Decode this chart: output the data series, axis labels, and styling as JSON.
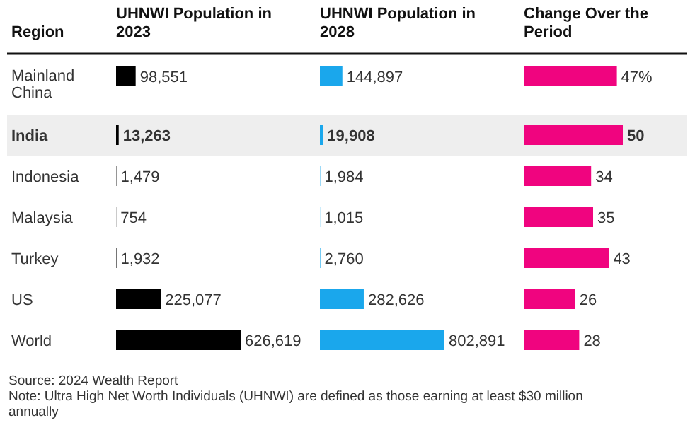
{
  "chart_data": [
    {
      "type": "bar",
      "orientation": "horizontal",
      "title": "UHNWI Population in 2023",
      "ylabel": "Region",
      "categories": [
        "Mainland China",
        "India",
        "Indonesia",
        "Malaysia",
        "Turkey",
        "US",
        "World"
      ],
      "values": [
        98551,
        13263,
        1479,
        754,
        1932,
        225077,
        626619
      ],
      "value_labels": [
        "98,551",
        "13,263",
        "1,479",
        "754",
        "1,932",
        "225,077",
        "626,619"
      ],
      "color": "#000000",
      "bands": [
        {
          "axis": "y",
          "from": "India",
          "to": "India",
          "color": "#eeeeee"
        }
      ],
      "annotations": [
        "Source: 2024 Wealth Report",
        "Note: Ultra High Net Worth Individuals (UHNWI) are defined as those earning at least $30 million annually"
      ]
    },
    {
      "type": "bar",
      "orientation": "horizontal",
      "title": "UHNWI Population in 2028",
      "tick_labels": false,
      "categories": [
        "Mainland China",
        "India",
        "Indonesia",
        "Malaysia",
        "Turkey",
        "US",
        "World"
      ],
      "values": [
        144897,
        19908,
        1984,
        1015,
        2760,
        282626,
        802891
      ],
      "value_labels": [
        "144,897",
        "19,908",
        "1,984",
        "1,015",
        "2,760",
        "282,626",
        "802,891"
      ],
      "color": "#1aa7ec",
      "bands": [
        {
          "axis": "y",
          "from": "India",
          "to": "India",
          "color": "#eeeeee"
        }
      ]
    },
    {
      "type": "bar",
      "orientation": "horizontal",
      "title": "Change Over the Period",
      "tick_labels": false,
      "categories": [
        "Mainland China",
        "India",
        "Indonesia",
        "Malaysia",
        "Turkey",
        "US",
        "World"
      ],
      "values": [
        47,
        50,
        34,
        35,
        43,
        26,
        28
      ],
      "value_labels": [
        "47%",
        "50",
        "34",
        "35",
        "43",
        "26",
        "28"
      ],
      "color": "#f0047f",
      "bands": [
        {
          "axis": "y",
          "from": "India",
          "to": "India",
          "color": "#eeeeee"
        }
      ]
    }
  ]
}
